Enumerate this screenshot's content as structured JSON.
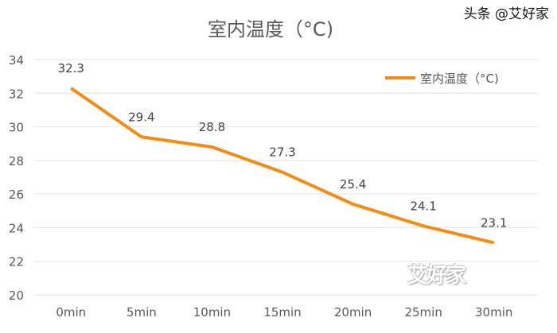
{
  "chart_data": {
    "type": "line",
    "title": "室内温度（°C)",
    "categories": [
      "0min",
      "5min",
      "10min",
      "15min",
      "20min",
      "25min",
      "30min"
    ],
    "series": [
      {
        "name": "室内温度（°C)",
        "values": [
          32.3,
          29.4,
          28.8,
          27.3,
          25.4,
          24.1,
          23.1
        ],
        "color": "#F28C16"
      }
    ],
    "data_labels": [
      "32.3",
      "29.4",
      "28.8",
      "27.3",
      "25.4",
      "24.1",
      "23.1"
    ],
    "xlabel": "",
    "ylabel": "",
    "ylim": [
      20,
      34
    ],
    "yticks": [
      "20",
      "22",
      "24",
      "26",
      "28",
      "30",
      "32",
      "34"
    ],
    "grid": true,
    "legend": "top-right"
  },
  "watermark": {
    "logo": "艾好家",
    "text": "头条 @艾好家"
  }
}
